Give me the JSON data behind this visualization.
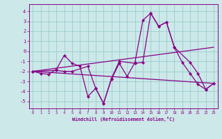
{
  "xlabel": "Windchill (Refroidissement éolien,°C)",
  "bg_color": "#cce8e8",
  "line_color": "#880088",
  "grid_color": "#99cccc",
  "xlim": [
    -0.5,
    23.5
  ],
  "ylim": [
    -5.7,
    4.7
  ],
  "yticks": [
    -5,
    -4,
    -3,
    -2,
    -1,
    0,
    1,
    2,
    3,
    4
  ],
  "xticks": [
    0,
    1,
    2,
    3,
    4,
    5,
    6,
    7,
    8,
    9,
    10,
    11,
    12,
    13,
    14,
    15,
    16,
    17,
    18,
    19,
    20,
    21,
    22,
    23
  ],
  "series0_x": [
    0,
    1,
    2,
    3,
    4,
    5,
    6,
    7,
    8,
    9,
    10,
    11,
    12,
    13,
    14,
    15,
    16,
    17,
    18,
    19,
    20,
    21,
    22,
    23
  ],
  "series0_y": [
    -2.0,
    -2.2,
    -2.3,
    -1.8,
    -0.4,
    -1.2,
    -1.5,
    -4.5,
    -3.7,
    -5.2,
    -2.8,
    -1.2,
    -2.5,
    -1.1,
    3.1,
    3.8,
    2.5,
    2.9,
    0.4,
    -1.1,
    -2.2,
    -3.3,
    -3.8,
    -3.2
  ],
  "series1_x": [
    0,
    3,
    4,
    5,
    7,
    8,
    9,
    10,
    11,
    13,
    14,
    15,
    16,
    17,
    18,
    20,
    21,
    22,
    23
  ],
  "series1_y": [
    -2.0,
    -1.9,
    -2.0,
    -2.0,
    -1.5,
    -3.7,
    -5.2,
    -2.7,
    -1.0,
    -1.2,
    -1.1,
    3.8,
    2.5,
    2.9,
    0.4,
    -1.1,
    -2.2,
    -3.8,
    -3.2
  ],
  "trend1_x": [
    0,
    23
  ],
  "trend1_y": [
    -2.0,
    0.4
  ],
  "trend2_x": [
    0,
    23
  ],
  "trend2_y": [
    -2.0,
    -3.2
  ]
}
